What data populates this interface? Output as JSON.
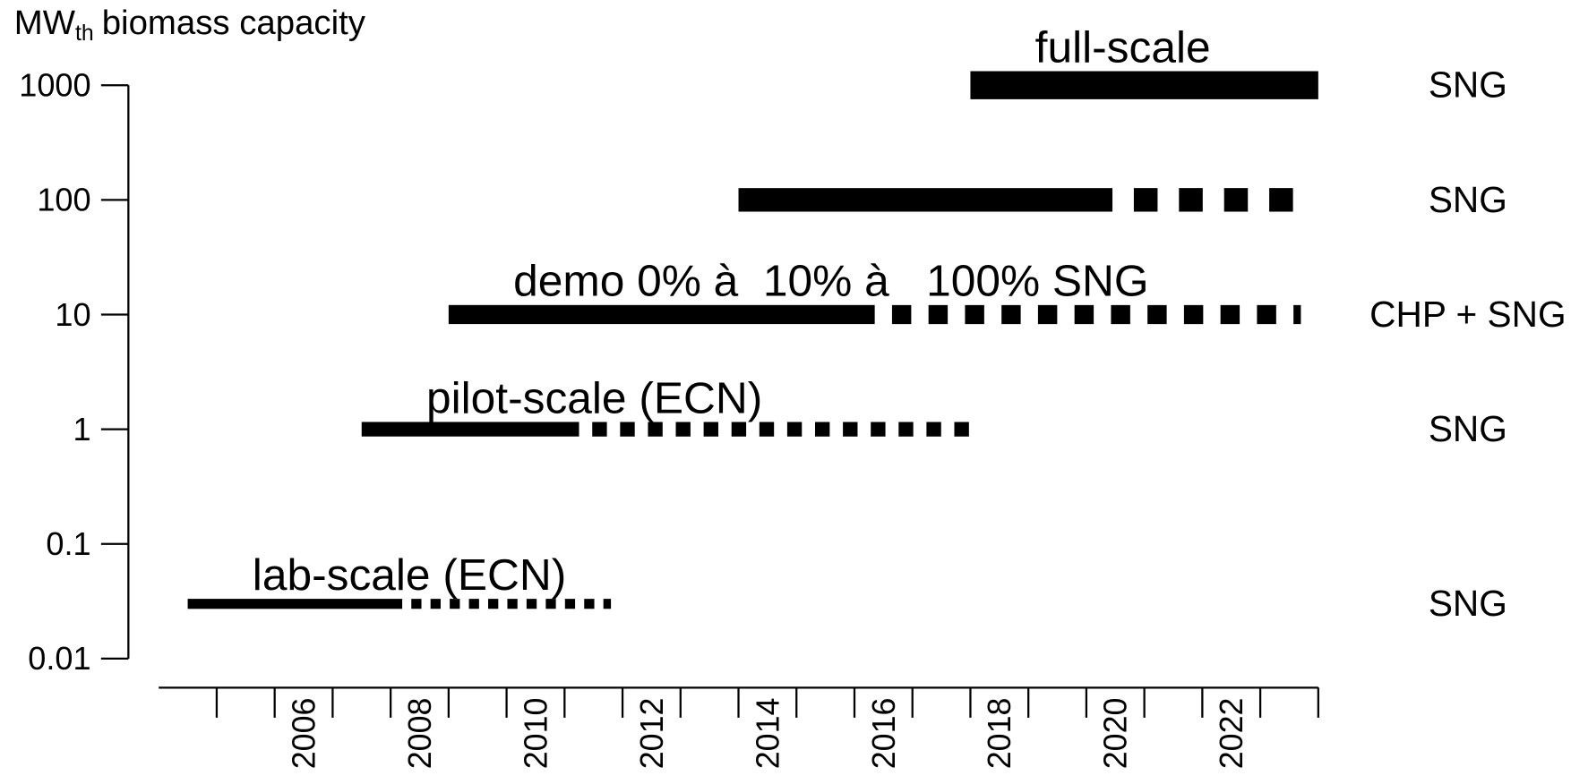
{
  "chart_data": {
    "type": "timeline",
    "ylabel": [
      "MW",
      "th",
      "biomass capacity"
    ],
    "ylim": [
      0.01,
      1000
    ],
    "yticks": [
      1000,
      100,
      10,
      1,
      0.1,
      0.01
    ],
    "log_y": true,
    "xlim": [
      2004,
      2024
    ],
    "categories": [
      null,
      null,
      "2006",
      null,
      "2008",
      null,
      "2010",
      null,
      "2012",
      null,
      "2014",
      null,
      "2016",
      null,
      "2018",
      null,
      "2020",
      null,
      "2022",
      null
    ],
    "color": "#000000",
    "series": [
      {
        "name": "lab-scale (ECN)",
        "value": 0.03,
        "start": 2004.5,
        "solid_end": 2008.2,
        "end": 2011.8,
        "product": "SNG"
      },
      {
        "name": "pilot-scale (ECN)",
        "value": 1,
        "start": 2007.5,
        "solid_end": 2011.25,
        "end": 2018,
        "product": "SNG"
      },
      {
        "name": "demo 0% à  10% à   100% SNG",
        "value": 10,
        "start": 2009,
        "solid_end": 2016.35,
        "end": 2023.7,
        "product": "CHP + SNG"
      },
      {
        "value": 100,
        "start": 2014,
        "solid_end": 2020.45,
        "end": 2023.75,
        "product": "SNG"
      },
      {
        "name": "full-scale",
        "value": 1000,
        "start": 2018,
        "solid_end": 2024,
        "end": 2024,
        "product": "SNG"
      }
    ]
  }
}
